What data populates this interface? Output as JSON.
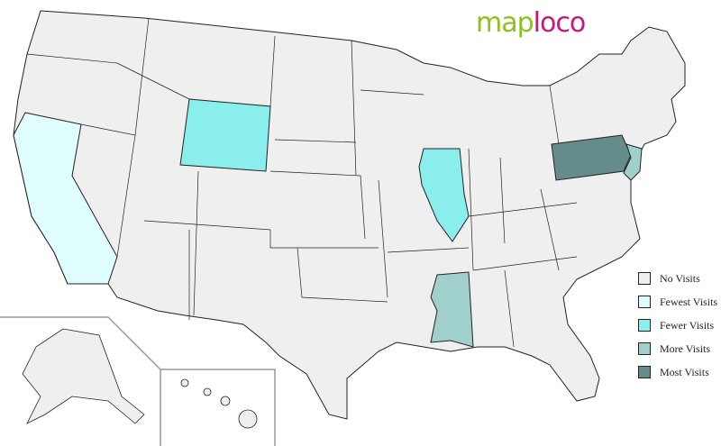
{
  "logo": {
    "part1": "map",
    "part2": "loco"
  },
  "legend": [
    {
      "label": "No Visits",
      "color": "#efefef"
    },
    {
      "label": "Fewest Visits",
      "color": "#dffdfd"
    },
    {
      "label": "Fewer Visits",
      "color": "#8aeeed"
    },
    {
      "label": "More Visits",
      "color": "#9fd0cc"
    },
    {
      "label": "Most Visits",
      "color": "#638c8a"
    }
  ],
  "states": [
    {
      "name": "California",
      "level": "Fewest Visits",
      "color": "#dffdfd"
    },
    {
      "name": "Wyoming",
      "level": "Fewer Visits",
      "color": "#8aeeed"
    },
    {
      "name": "Illinois",
      "level": "Fewer Visits",
      "color": "#8aeeed"
    },
    {
      "name": "Mississippi",
      "level": "More Visits",
      "color": "#9fd0cc"
    },
    {
      "name": "New Jersey",
      "level": "More Visits",
      "color": "#9fd0cc"
    },
    {
      "name": "Pennsylvania",
      "level": "Most Visits",
      "color": "#638c8a"
    }
  ]
}
